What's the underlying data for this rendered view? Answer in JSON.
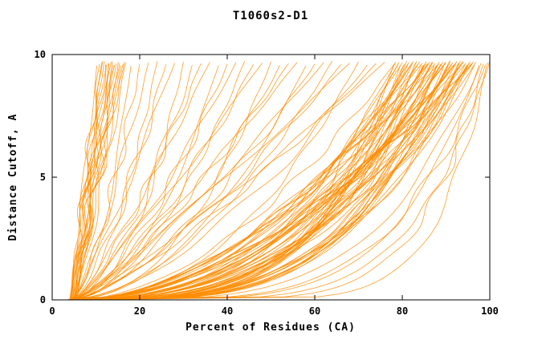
{
  "chart_data": {
    "type": "line",
    "title": "T1060s2-D1",
    "xlabel": "Percent of Residues (CA)",
    "ylabel": "Distance Cutoff, A",
    "xlim": [
      0,
      100
    ],
    "ylim": [
      0,
      10
    ],
    "xticks": [
      0,
      20,
      40,
      60,
      80,
      100
    ],
    "yticks": [
      0,
      5,
      10
    ],
    "line_color": "#ff8c00",
    "frame_color": "#000000",
    "top_y_min": 9.55,
    "top_y_max": 9.75,
    "curves_note": "each curve = [x_start_percent_at_cutoff_0, x_percent_at_top_cutoff, shape_exponent]; x(y) = x0 + (xe-x0)*(y/ytop)^a",
    "curves": [
      [
        4.0,
        10.2,
        0.95
      ],
      [
        4.5,
        10.8,
        1.05
      ],
      [
        5.0,
        11.3,
        0.9
      ],
      [
        4.2,
        11.9,
        1.1
      ],
      [
        4.8,
        12.4,
        1.0
      ],
      [
        5.2,
        12.9,
        0.85
      ],
      [
        4.4,
        13.5,
        1.15
      ],
      [
        5.0,
        14.0,
        0.95
      ],
      [
        4.6,
        14.6,
        1.05
      ],
      [
        5.4,
        15.1,
        0.9
      ],
      [
        4.1,
        15.7,
        1.1
      ],
      [
        4.9,
        16.2,
        1.0
      ],
      [
        5.3,
        16.8,
        0.88
      ],
      [
        4.3,
        11.5,
        1.2
      ],
      [
        5.1,
        12.2,
        0.92
      ],
      [
        4.7,
        13.0,
        1.08
      ],
      [
        5.5,
        13.8,
        0.97
      ],
      [
        4.2,
        14.3,
        1.12
      ],
      [
        4.8,
        15.4,
        0.93
      ],
      [
        5.2,
        16.5,
        1.02
      ],
      [
        3.5,
        18,
        0.5
      ],
      [
        4.1,
        20,
        0.65
      ],
      [
        4.7,
        22,
        0.8
      ],
      [
        3.8,
        24,
        0.55
      ],
      [
        4.4,
        26,
        0.7
      ],
      [
        5.0,
        28,
        0.9
      ],
      [
        3.6,
        30,
        0.45
      ],
      [
        4.2,
        32,
        0.6
      ],
      [
        4.8,
        34,
        0.75
      ],
      [
        5.1,
        36,
        0.85
      ],
      [
        3.7,
        38,
        0.5
      ],
      [
        4.3,
        40,
        0.65
      ],
      [
        4.9,
        42,
        0.8
      ],
      [
        3.9,
        44,
        0.55
      ],
      [
        4.5,
        46,
        0.7
      ],
      [
        5.2,
        48,
        0.9
      ],
      [
        3.5,
        50,
        0.45
      ],
      [
        4.1,
        52,
        0.6
      ],
      [
        4.7,
        54,
        0.75
      ],
      [
        5.0,
        56,
        0.85
      ],
      [
        3.8,
        58,
        0.5
      ],
      [
        4.4,
        60,
        0.65
      ],
      [
        4.6,
        62,
        0.8
      ],
      [
        3.6,
        64,
        0.55
      ],
      [
        4.2,
        66,
        0.7
      ],
      [
        4.8,
        68,
        0.9
      ],
      [
        5.1,
        70,
        0.45
      ],
      [
        3.7,
        72,
        0.6
      ],
      [
        4.3,
        74,
        0.75
      ],
      [
        4.9,
        76,
        0.85
      ],
      [
        3.4,
        78,
        0.25
      ],
      [
        4.0,
        79,
        0.35
      ],
      [
        4.6,
        80,
        0.45
      ],
      [
        5.2,
        81,
        0.3
      ],
      [
        3.8,
        82,
        0.5
      ],
      [
        3.4,
        83,
        0.28
      ],
      [
        4.0,
        84,
        0.4
      ],
      [
        4.6,
        85,
        0.32
      ],
      [
        5.2,
        86,
        0.55
      ],
      [
        3.8,
        87,
        0.38
      ],
      [
        3.4,
        88,
        0.25
      ],
      [
        4.0,
        89,
        0.35
      ],
      [
        4.6,
        90,
        0.45
      ],
      [
        5.2,
        91,
        0.3
      ],
      [
        3.8,
        92,
        0.5
      ],
      [
        3.4,
        93,
        0.28
      ],
      [
        4.0,
        94,
        0.4
      ],
      [
        4.6,
        95,
        0.32
      ],
      [
        5.2,
        96,
        0.55
      ],
      [
        3.8,
        78.5,
        0.38
      ],
      [
        3.4,
        79.5,
        0.25
      ],
      [
        4.0,
        80.5,
        0.35
      ],
      [
        4.6,
        81.5,
        0.45
      ],
      [
        5.2,
        82.5,
        0.3
      ],
      [
        3.8,
        83.5,
        0.5
      ],
      [
        3.4,
        84.5,
        0.28
      ],
      [
        4.0,
        85.5,
        0.4
      ],
      [
        4.6,
        86.5,
        0.32
      ],
      [
        5.2,
        87.5,
        0.55
      ],
      [
        3.8,
        88.5,
        0.38
      ],
      [
        3.4,
        89.5,
        0.25
      ],
      [
        4.0,
        90.5,
        0.35
      ],
      [
        4.6,
        91.5,
        0.45
      ],
      [
        5.2,
        92.5,
        0.3
      ],
      [
        3.8,
        93.5,
        0.5
      ],
      [
        3.4,
        94.5,
        0.28
      ],
      [
        4.0,
        95.5,
        0.4
      ],
      [
        4.6,
        96.5,
        0.32
      ],
      [
        5.2,
        78.3,
        0.55
      ],
      [
        3.8,
        79.3,
        0.38
      ],
      [
        3.4,
        80.3,
        0.25
      ],
      [
        4.0,
        81.3,
        0.35
      ],
      [
        4.6,
        82.3,
        0.45
      ],
      [
        5.2,
        83.3,
        0.3
      ],
      [
        3.8,
        84.3,
        0.5
      ],
      [
        3.4,
        85.3,
        0.28
      ],
      [
        4.0,
        86.3,
        0.4
      ],
      [
        4.6,
        87.3,
        0.32
      ],
      [
        5.2,
        88.3,
        0.55
      ],
      [
        3.8,
        89.3,
        0.38
      ],
      [
        3.4,
        90.3,
        0.25
      ],
      [
        4.0,
        91.3,
        0.35
      ],
      [
        4.6,
        92.3,
        0.45
      ],
      [
        5.2,
        93.3,
        0.3
      ],
      [
        3.8,
        94.3,
        0.5
      ],
      [
        3.4,
        95.3,
        0.28
      ],
      [
        4.0,
        96.3,
        0.4
      ],
      [
        4.6,
        84.8,
        0.32
      ],
      [
        5.2,
        85.8,
        0.55
      ],
      [
        3.8,
        86.8,
        0.38
      ],
      [
        3.4,
        87.8,
        0.25
      ],
      [
        4.0,
        88.8,
        0.35
      ],
      [
        4.6,
        89.8,
        0.45
      ],
      [
        5.2,
        90.8,
        0.3
      ],
      [
        3.8,
        91.8,
        0.5
      ],
      [
        3.4,
        92.8,
        0.28
      ],
      [
        4.0,
        93.8,
        0.4
      ],
      [
        4.6,
        94.8,
        0.32
      ],
      [
        5.2,
        95.8,
        0.55
      ],
      [
        3.8,
        96.8,
        0.38
      ],
      [
        3.5,
        97.5,
        0.2
      ],
      [
        4.0,
        98.5,
        0.15
      ],
      [
        4.5,
        99.5,
        0.12
      ],
      [
        3.8,
        100,
        0.18
      ],
      [
        4.2,
        99,
        0.22
      ],
      [
        3.6,
        98,
        0.25
      ]
    ]
  }
}
